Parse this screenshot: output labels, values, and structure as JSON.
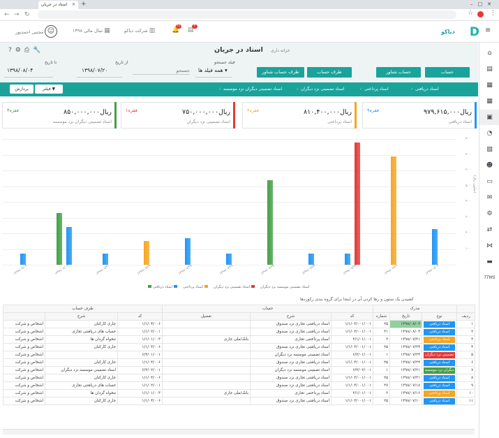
{
  "browser": {
    "tab_title": "اسناد در جریان"
  },
  "topbar": {
    "logo": "دیاکو",
    "company": "شرکت دیاکو",
    "fiscal_year": "سال مالی ۱۳۹۸",
    "user": "مجتبی احمدپور",
    "badge1": "۱۶",
    "badge2": "۳"
  },
  "sidebar": {
    "items": [
      "home-icon",
      "document-icon",
      "calculator-icon",
      "grid-icon",
      "wallet-icon",
      "pie-chart-icon",
      "receipt-icon",
      "users-icon",
      "card-icon",
      "mail-icon",
      "cogs-icon",
      "exchange-icon",
      "network-icon",
      "truck-icon"
    ],
    "ttms": "TTMS"
  },
  "header": {
    "breadcrumb": "خزانه داری",
    "title": "اسناد در جریان"
  },
  "buttons": {
    "account": "حساب",
    "account_floating": "حساب شناور",
    "account_side": "طرف حساب",
    "account_side_floating": "طرف حساب شناور",
    "filter": "فیلتر",
    "process": "پردازش"
  },
  "filters": {
    "field_label": "فیلد جستجو",
    "field_value": "همه فیلد ها",
    "search_placeholder": "جستجو",
    "from_label": "از تاریخ",
    "from_value": "۱۳۹۸/۰۷/۲۰",
    "to_label": "تا تاریخ",
    "to_value": "۱۳۹۸/۰۸/۰۴"
  },
  "doc_types": [
    "اسناد دریافتی",
    "اسناد پرداختی",
    "اسناد تضمینی نزد دیگران",
    "اسناد تضمینی دیگران نزد موسسه"
  ],
  "cards": [
    {
      "value": "۹۷۹,۶۱۵,۰۰۰ریال",
      "label": "اسناد دریافتی",
      "count": "۹فقره",
      "color": "#2196f3"
    },
    {
      "value": "۸۱۰,۴۰۰,۰۰۰ریال",
      "label": "اسناد پرداختی",
      "count": "۲فقره",
      "color": "#f5a623"
    },
    {
      "value": "۷۵۰,۰۰۰,۰۰۰ریال",
      "label": "اسناد تضمینی نزد دیگران",
      "count": "۱فقره",
      "color": "#e53935"
    },
    {
      "value": "۸۵۰,۰۰۰,۰۰۰ریال",
      "label": "اسناد تضمینی دیگران نزد موسسه",
      "count": "۳فقره",
      "color": "#43a047"
    }
  ],
  "chart_data": {
    "type": "bar",
    "ylabel": "(میلیون ریال)",
    "y_ticks": [
      "۰",
      "۱۰۰",
      "۲۰۰",
      "۳۰۰",
      "۴۰۰",
      "۵۰۰",
      "۶۰۰",
      "۷۰۰",
      "۸۰۰"
    ],
    "ylim": [
      0,
      800
    ],
    "series_names": [
      "اسناد دریافتی",
      "اسناد پرداختی",
      "اسناد تضمینی نزد دیگران",
      "اسناد تضمینی موسسه نزد دیگران"
    ],
    "series_colors": [
      "#2196f3",
      "#f5a623",
      "#e53935",
      "#43a047"
    ],
    "categories": [
      "۱۳۹۸/۰۷/۰۲",
      "۱۳۹۸/۰۷/۲۱",
      "۱۳۹۸/۰۷/۲۳",
      "۱۳۹۸/۰۷/۲۴",
      "۱۳۹۸/۰۷/۲۵",
      "۱۳۹۸/۰۷/۲۷",
      "۱۳۹۸/۰۷/۲۸",
      "۱۳۹۸/۰۷/۲۹",
      "۱۳۹۸/۰۷/۳۰",
      "۱۳۹۸/۰۸/۰۱",
      "۱۳۹۸/۰۸/۰۴"
    ],
    "bars": [
      {
        "cat": 0,
        "series": 0,
        "value": 225
      },
      {
        "cat": 1,
        "series": 1,
        "value": 690
      },
      {
        "cat": 2,
        "series": 0,
        "value": 70
      },
      {
        "cat": 2,
        "series": 2,
        "value": 780
      },
      {
        "cat": 3,
        "series": 0,
        "value": 70
      },
      {
        "cat": 4,
        "series": 3,
        "value": 540
      },
      {
        "cat": 5,
        "series": 0,
        "value": 70
      },
      {
        "cat": 6,
        "series": 0,
        "value": 170
      },
      {
        "cat": 7,
        "series": 1,
        "value": 150
      },
      {
        "cat": 8,
        "series": 0,
        "value": 70
      },
      {
        "cat": 9,
        "series": 3,
        "value": 330
      },
      {
        "cat": 9,
        "series": 0,
        "value": 240
      },
      {
        "cat": 10,
        "series": 0,
        "value": 70
      }
    ]
  },
  "group_hint": "کشیدن یک ستون و رها کردن آن در اینجا برای گروه بندی رکوردها",
  "table": {
    "group_headers": {
      "row": "ردیف",
      "doc": "مدرک",
      "account": "حساب",
      "side": "طرف حساب"
    },
    "headers": [
      "ردیف",
      "نوع",
      "تاریخ",
      "شماره",
      "کد",
      "شرح",
      "تفصیل",
      "کد",
      "شرح"
    ],
    "rows": [
      {
        "n": "۱",
        "type": "اسناد دریافتی",
        "tc": "#2196f3",
        "date": "۱۳۹۸/۰۸/۰۲",
        "num": "۲۵",
        "code": "۱/۱/۰۳/۰۰۱/۰۰۱",
        "desc": "اسناد دریافتنی تجاری نزد صندوق",
        "det": "",
        "scode": "۱/۱/۰۴/۰۰۶",
        "sdesc": "جاری کارکنان",
        "last": "اشخاص و شرکت"
      },
      {
        "n": "۲",
        "type": "اسناد دریافتی",
        "tc": "#2196f3",
        "date": "۱۳۹۸/۰۸/۰۴",
        "num": "۳۱",
        "code": "۱/۱/۰۳/۰۰۱/۰۰۱",
        "desc": "اسناد دریافتنی تجاری نزد صندوق",
        "det": "",
        "scode": "۱/۱/۰۲/۰۰۱",
        "sdesc": "حساب های دریافتنی تجاری",
        "last": "اشخاص و شرکت"
      },
      {
        "n": "۳",
        "type": "اسناد پرداختی",
        "tc": "#f5a623",
        "date": "۱۳۹۸/۰۷/۳۱",
        "num": "۲",
        "code": "۲/۱/۰۱/۰۰۱",
        "desc": "اسناد پرداختنی تجاری",
        "det": "بانک/ملی جاری",
        "scode": "۱/۱/۰۱/۰۰۳",
        "sdesc": "تنخواه گردان ها",
        "last": "اشخاص و شرکت"
      },
      {
        "n": "۴",
        "type": "اسناد دریافتی",
        "tc": "#2196f3",
        "date": "۱۳۹۸/۰۷/۲۴",
        "num": "۲۵",
        "code": "۱/۱/۰۳/۰۰۱/۰۰۱",
        "desc": "اسناد دریافتنی تجاری نزد صندوق",
        "det": "",
        "scode": "۱/۱/۰۴/۰۰۶",
        "sdesc": "جاری کارکنان",
        "last": "اشخاص و شرکت"
      },
      {
        "n": "۵",
        "type": "تضمینی نزد دیگران",
        "tc": "#e53935",
        "date": "۱۳۹۸/۰۷/۲۴",
        "num": "۱",
        "code": "۶/۲/۰۱/۰۰۱",
        "desc": "اسناد تضمینی موسسه نزد دیگران",
        "det": "",
        "scode": "۶/۲/۰۱/۰۰۱",
        "sdesc": "",
        "last": "اشخاص و شرکت"
      },
      {
        "n": "۶",
        "type": "اسناد دریافتی",
        "tc": "#2196f3",
        "date": "۱۳۹۸/۰۷/۲۴",
        "num": "۲۵",
        "code": "۱/۱/۰۳/۰۰۱/۰۰۱",
        "desc": "اسناد دریافتنی تجاری نزد صندوق",
        "det": "",
        "scode": "۱/۱/۰۴/۰۰۶",
        "sdesc": "جاری کارکنان",
        "last": "اشخاص و شرکت"
      },
      {
        "n": "۷",
        "type": "دیگران نزد موسسه",
        "tc": "#43a047",
        "date": "۱۳۹۸/۰۷/۲۱",
        "num": "۱",
        "code": "۶/۲/۰۲/۰۰۱",
        "desc": "اسناد تضمینی موسسه نزد دیگران",
        "det": "",
        "scode": "۶/۲/۰۲/۰۰۱",
        "sdesc": "اسناد تضمینی موسسه نزد دیگران",
        "last": "اشخاص و شرکت"
      },
      {
        "n": "۸",
        "type": "اسناد دریافتی",
        "tc": "#2196f3",
        "date": "۱۳۹۸/۰۷/۲۱",
        "num": "۲۵",
        "code": "۱/۱/۰۳/۰۰۱/۰۰۱",
        "desc": "اسناد دریافتنی تجاری نزد صندوق",
        "det": "",
        "scode": "۱/۱/۰۴/۰۰۶",
        "sdesc": "جاری کارکنان",
        "last": "اشخاص و شرکت"
      },
      {
        "n": "۹",
        "type": "اسناد دریافتی",
        "tc": "#2196f3",
        "date": "۱۳۹۸/۰۷/۱۸",
        "num": "۲۷",
        "code": "۱/۱/۰۳/۰۰۱/۰۰۱",
        "desc": "اسناد دریافتنی تجاری نزد صندوق",
        "det": "",
        "scode": "۱/۱/۰۲/۰۰۱",
        "sdesc": "حساب های دریافتنی تجاری",
        "last": "اشخاص و شرکت"
      },
      {
        "n": "۱۰",
        "type": "اسناد پرداختی",
        "tc": "#f5a623",
        "date": "۱۳۹۸/۰۷/۱۶",
        "num": "۲",
        "code": "۲/۱/۰۱/۰۰۱",
        "desc": "اسناد پرداختنی تجاری",
        "det": "بانک/ملی جاری",
        "scode": "۱/۱/۰۱/۰۰۳",
        "sdesc": "تنخواه گردان ها",
        "last": "اشخاص و شرکت"
      },
      {
        "n": "۱۱",
        "type": "اسناد دریافتی",
        "tc": "#2196f3",
        "date": "۱۳۹۸/۰۷/۱۰",
        "num": "۲۵",
        "code": "۱/۱/۰۳/۰۰۱/۰۰۱",
        "desc": "اسناد دریافتنی تجاری نزد صندوق",
        "det": "",
        "scode": "۱/۱/۰۴/۰۰۶",
        "sdesc": "جاری کارکنان",
        "last": "اشخاص و شرکت"
      }
    ]
  }
}
